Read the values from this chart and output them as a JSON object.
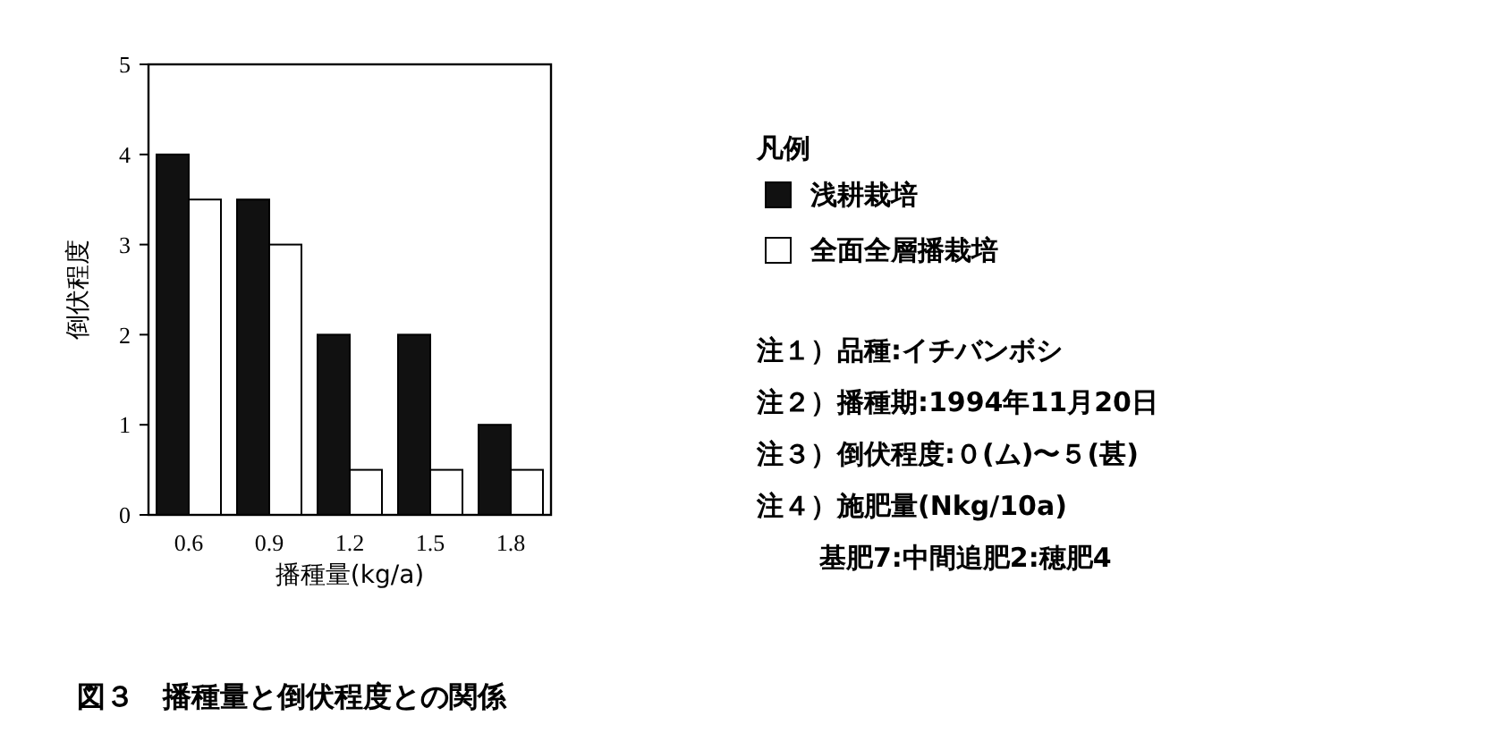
{
  "chart_data": {
    "type": "bar",
    "title": "図３　播種量と倒伏程度との関係",
    "xlabel": "播種量(kg/a)",
    "ylabel": "倒伏程度",
    "legend_title": "凡例",
    "categories": [
      "0.6",
      "0.9",
      "1.2",
      "1.5",
      "1.8"
    ],
    "series": [
      {
        "name": "浅耕栽培",
        "color": "#111111",
        "values": [
          4,
          3.5,
          2,
          2,
          1
        ]
      },
      {
        "name": "全面全層播栽培",
        "color": "#ffffff",
        "values": [
          3.5,
          3,
          0.5,
          0.5,
          0.5
        ]
      }
    ],
    "ylim": [
      0,
      5
    ],
    "yticks": [
      0,
      1,
      2,
      3,
      4,
      5
    ],
    "grid": false,
    "legend": "right",
    "annotations": [
      "注１）品種:イチバンボシ",
      "注２）播種期:1994年11月20日",
      "注３）倒伏程度:０(ム)〜５(甚)",
      "注４）施肥量(Nkg/10a)",
      "基肥7:中間追肥2:穂肥4"
    ]
  }
}
